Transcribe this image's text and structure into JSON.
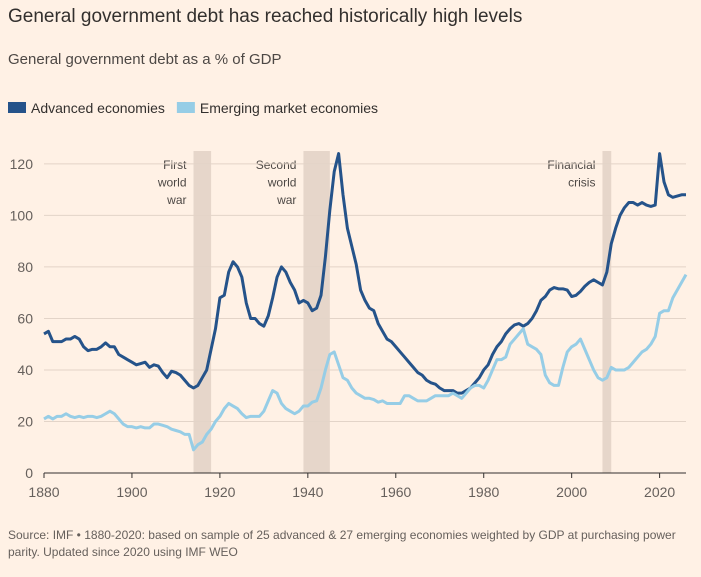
{
  "chart_data": {
    "type": "line",
    "title": "General government debt has reached historically high levels",
    "subtitle": "General government debt as a % of GDP",
    "source": "Source: IMF • 1880-2020: based on sample of 25 advanced & 27 emerging economies weighted by GDP at purchasing power parity. Updated since 2020 using IMF WEO",
    "x": [
      1880,
      1881,
      1882,
      1883,
      1884,
      1885,
      1886,
      1887,
      1888,
      1889,
      1890,
      1891,
      1892,
      1893,
      1894,
      1895,
      1896,
      1897,
      1898,
      1899,
      1900,
      1901,
      1902,
      1903,
      1904,
      1905,
      1906,
      1907,
      1908,
      1909,
      1910,
      1911,
      1912,
      1913,
      1914,
      1915,
      1916,
      1917,
      1918,
      1919,
      1920,
      1921,
      1922,
      1923,
      1924,
      1925,
      1926,
      1927,
      1928,
      1929,
      1930,
      1931,
      1932,
      1933,
      1934,
      1935,
      1936,
      1937,
      1938,
      1939,
      1940,
      1941,
      1942,
      1943,
      1944,
      1945,
      1946,
      1947,
      1948,
      1949,
      1950,
      1951,
      1952,
      1953,
      1954,
      1955,
      1956,
      1957,
      1958,
      1959,
      1960,
      1961,
      1962,
      1963,
      1964,
      1965,
      1966,
      1967,
      1968,
      1969,
      1970,
      1971,
      1972,
      1973,
      1974,
      1975,
      1976,
      1977,
      1978,
      1979,
      1980,
      1981,
      1982,
      1983,
      1984,
      1985,
      1986,
      1987,
      1988,
      1989,
      1990,
      1991,
      1992,
      1993,
      1994,
      1995,
      1996,
      1997,
      1998,
      1999,
      2000,
      2001,
      2002,
      2003,
      2004,
      2005,
      2006,
      2007,
      2008,
      2009,
      2010,
      2011,
      2012,
      2013,
      2014,
      2015,
      2016,
      2017,
      2018,
      2019,
      2020,
      2021,
      2022,
      2023,
      2024,
      2025,
      2026
    ],
    "series": [
      {
        "name": "Advanced economies",
        "color": "#25538a",
        "values": [
          54,
          55,
          51,
          51,
          51,
          52,
          52,
          53,
          52,
          49,
          47.5,
          48,
          48,
          49,
          50.5,
          49,
          49,
          46,
          45,
          44,
          43,
          42,
          42.5,
          43,
          41,
          42,
          41.5,
          39,
          37,
          39.5,
          39,
          38,
          36,
          34,
          33,
          34,
          37,
          40,
          48,
          56,
          68,
          69,
          78,
          82,
          80,
          76,
          66,
          60,
          60,
          58,
          57,
          61,
          68,
          76,
          80,
          78,
          74,
          71,
          66,
          67,
          66,
          63,
          64,
          69,
          84,
          102,
          117,
          124,
          108,
          95,
          88,
          81,
          71,
          67,
          64,
          63,
          58,
          55,
          52,
          51,
          49,
          47,
          45,
          43,
          41,
          39,
          38,
          36,
          35,
          34.5,
          33,
          32,
          32,
          32,
          31,
          31,
          32,
          33,
          35,
          37,
          40,
          42,
          46,
          49,
          51,
          54,
          56,
          57.5,
          58,
          57,
          58,
          60,
          63,
          67,
          68.5,
          71,
          72,
          71.5,
          71.5,
          71,
          68.5,
          69,
          70.5,
          72.5,
          74,
          75,
          74,
          73,
          78,
          89,
          95,
          100,
          103,
          105,
          105,
          104,
          105,
          104,
          103.5,
          104,
          124,
          113,
          108,
          107,
          107.5,
          108,
          108
        ]
      },
      {
        "name": "Emerging market economies",
        "color": "#96cde6",
        "values": [
          21,
          22,
          21,
          22,
          22,
          23,
          22,
          21.5,
          22,
          21.5,
          22,
          22,
          21.5,
          22,
          23,
          24,
          23,
          21,
          19,
          18,
          18,
          17.5,
          18,
          17.5,
          17.5,
          19,
          19,
          18.5,
          18,
          17,
          16.5,
          16,
          15,
          15,
          9,
          11,
          12,
          15,
          17,
          20,
          22,
          25,
          27,
          26,
          25,
          23,
          21.5,
          22,
          22,
          22,
          24,
          28,
          32,
          31,
          27,
          25,
          24,
          23,
          24,
          26,
          26,
          27.5,
          28,
          33,
          40,
          46,
          47,
          42,
          37,
          36,
          33,
          31,
          30,
          29,
          29,
          28.5,
          27.5,
          28,
          27,
          27,
          27,
          27,
          30,
          30,
          29,
          28,
          28,
          28,
          29,
          30,
          30,
          30,
          30,
          31,
          30,
          29,
          31,
          33,
          34,
          34,
          33,
          36,
          40,
          44,
          44,
          45,
          50,
          52,
          54,
          56,
          50,
          49,
          48,
          46,
          38,
          35,
          34,
          34,
          41,
          47,
          49,
          50,
          52,
          48,
          44,
          40,
          37,
          36,
          37,
          41,
          40,
          40,
          40,
          41,
          43,
          45,
          47,
          48,
          50,
          53,
          62,
          63,
          63,
          68,
          71,
          74,
          77
        ]
      }
    ],
    "shaded_periods": [
      {
        "start": 1914,
        "end": 1918,
        "label": [
          "First",
          "world",
          "war"
        ]
      },
      {
        "start": 1939,
        "end": 1945,
        "label": [
          "Second",
          "world",
          "war"
        ]
      },
      {
        "start": 2007,
        "end": 2009,
        "label": [
          "Financial",
          "crisis"
        ]
      }
    ],
    "xlim": [
      1880,
      2026
    ],
    "xticks": [
      1880,
      1900,
      1920,
      1940,
      1960,
      1980,
      2000,
      2020
    ],
    "ylim": [
      0,
      125
    ],
    "yticks": [
      0,
      20,
      40,
      60,
      80,
      100,
      120
    ],
    "grid": true
  }
}
